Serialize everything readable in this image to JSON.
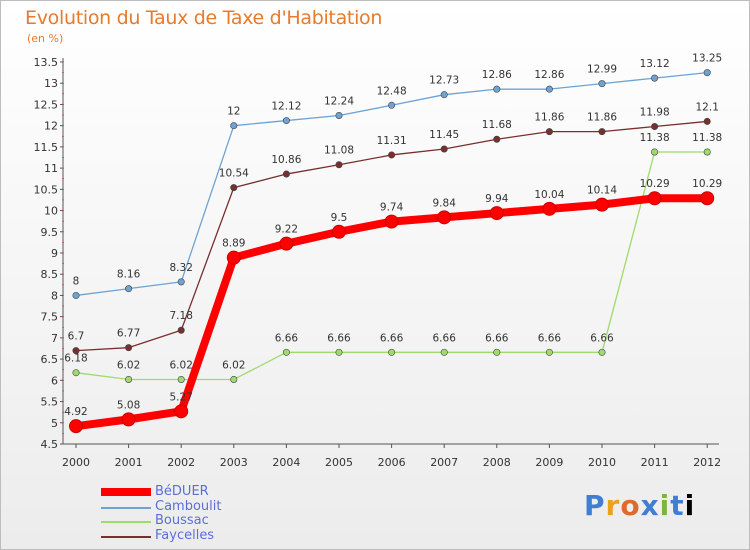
{
  "header": {
    "title": "Evolution du Taux de Taxe d'Habitation",
    "unit": "(en %)"
  },
  "brand": {
    "letters": [
      "P",
      "r",
      "o",
      "x",
      "i",
      "t",
      "i"
    ]
  },
  "chart_data": {
    "type": "line",
    "title": "Evolution du Taux de Taxe d'Habitation",
    "ylabel": "(en %)",
    "xlabel": "",
    "x": [
      "2000",
      "2001",
      "2002",
      "2003",
      "2004",
      "2005",
      "2006",
      "2007",
      "2008",
      "2009",
      "2010",
      "2011",
      "2012"
    ],
    "ylim": [
      4.5,
      13.5
    ],
    "ytick_step": 0.5,
    "grid": false,
    "legend_position": "bottom-left",
    "series": [
      {
        "name": "BéDUER",
        "color": "#ff0000",
        "stroke_width": 8,
        "values": [
          4.92,
          5.08,
          5.27,
          8.89,
          9.22,
          9.5,
          9.74,
          9.84,
          9.94,
          10.04,
          10.14,
          10.29,
          10.29
        ],
        "labels": [
          "4.92",
          "5.08",
          "5.27",
          "8.89",
          "9.22",
          "9.5",
          "9.74",
          "9.84",
          "9.94",
          "10.04",
          "10.14",
          "10.29",
          "10.29"
        ]
      },
      {
        "name": "Camboulit",
        "color": "#6ea2d3",
        "stroke_width": 1.3,
        "values": [
          8,
          8.16,
          8.32,
          12,
          12.12,
          12.24,
          12.48,
          12.73,
          12.86,
          12.86,
          12.99,
          13.12,
          13.25
        ],
        "labels": [
          "8",
          "8.16",
          "8.32",
          "12",
          "12.12",
          "12.24",
          "12.48",
          "12.73",
          "12.86",
          "12.86",
          "12.99",
          "13.12",
          "13.25"
        ]
      },
      {
        "name": "Boussac",
        "color": "#9ddb6a",
        "stroke_width": 1.3,
        "values": [
          6.18,
          6.02,
          6.02,
          6.02,
          6.66,
          6.66,
          6.66,
          6.66,
          6.66,
          6.66,
          6.66,
          11.38,
          11.38
        ],
        "labels": [
          "6.18",
          "6.02",
          "6.02",
          "6.02",
          "6.66",
          "6.66",
          "6.66",
          "6.66",
          "6.66",
          "6.66",
          "6.66",
          "11.38",
          "11.38"
        ]
      },
      {
        "name": "Faycelles",
        "color": "#7a2e2e",
        "stroke_width": 1.3,
        "values": [
          6.7,
          6.77,
          7.18,
          10.54,
          10.86,
          11.08,
          11.31,
          11.45,
          11.68,
          11.86,
          11.86,
          11.98,
          12.1
        ],
        "labels": [
          "6.7",
          "6.77",
          "7.18",
          "10.54",
          "10.86",
          "11.08",
          "11.31",
          "11.45",
          "11.68",
          "11.86",
          "11.86",
          "11.98",
          "12.1"
        ]
      }
    ]
  }
}
